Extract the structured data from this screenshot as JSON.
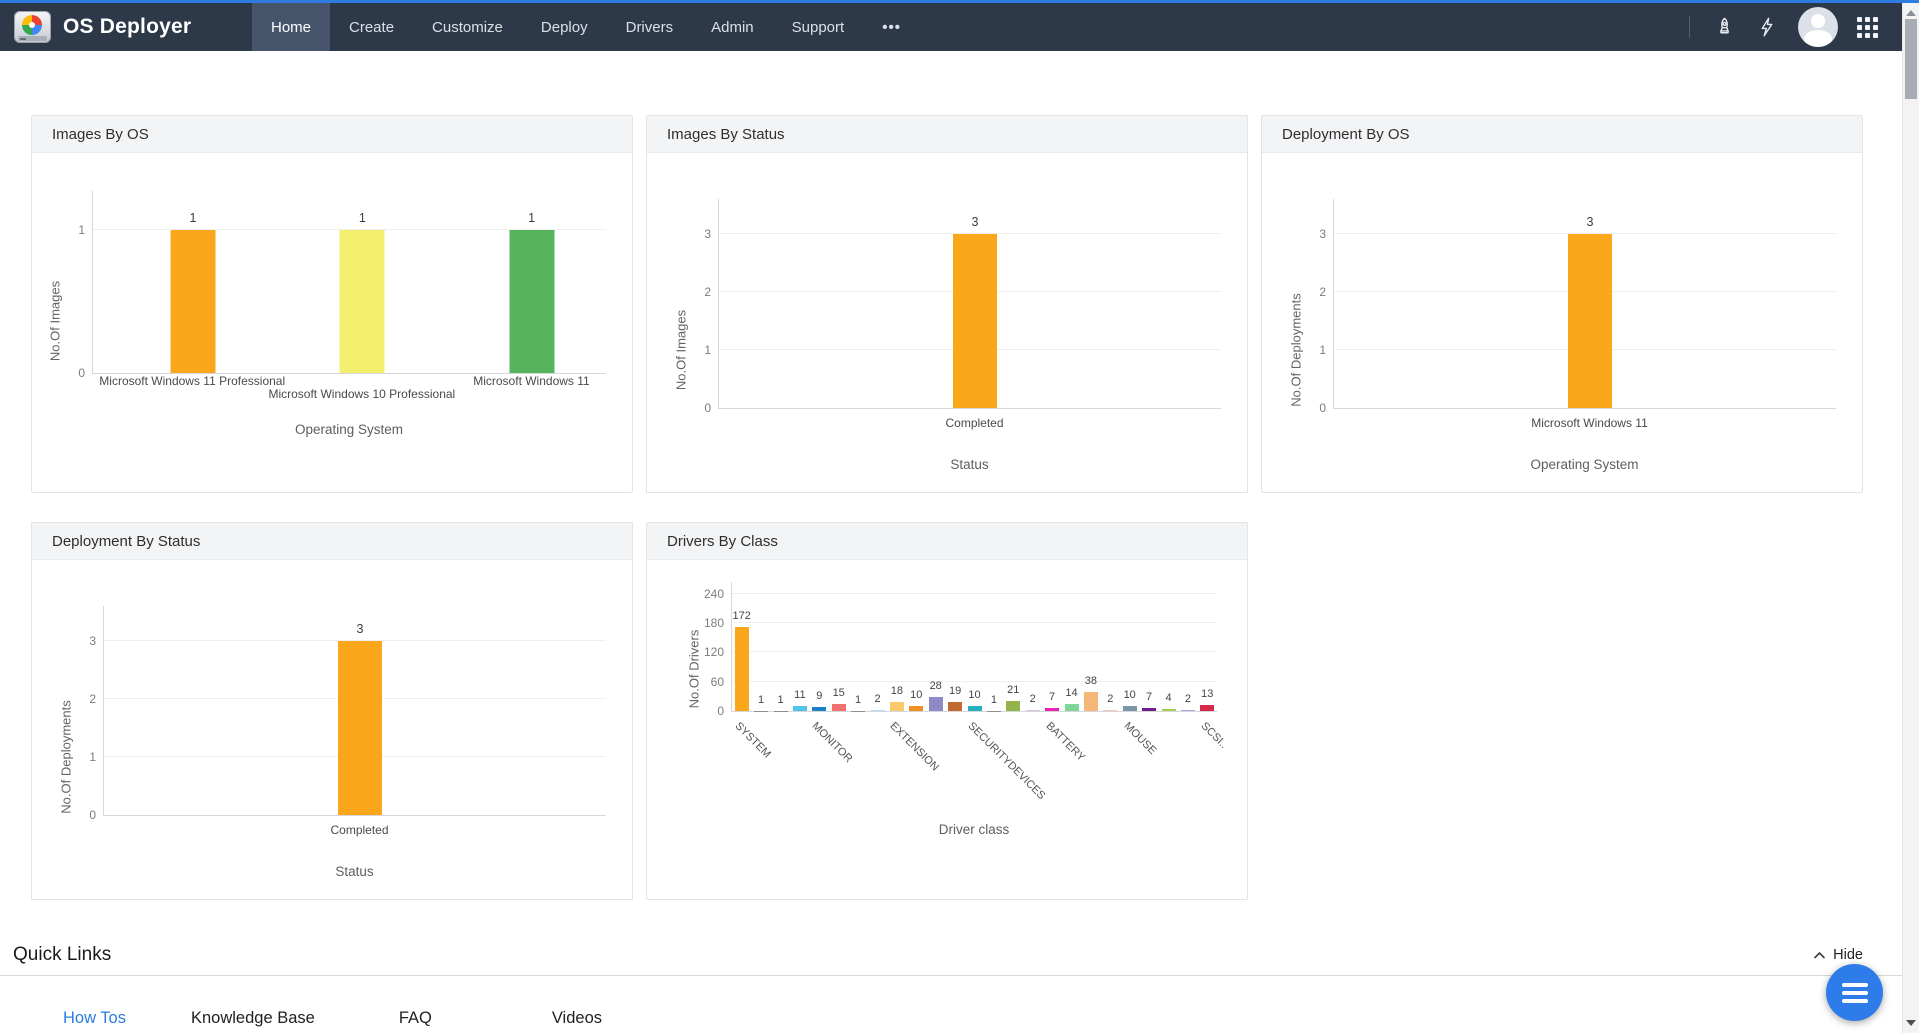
{
  "navbar": {
    "brand": "OS Deployer",
    "items": [
      {
        "label": "Home",
        "active": true
      },
      {
        "label": "Create",
        "active": false
      },
      {
        "label": "Customize",
        "active": false
      },
      {
        "label": "Deploy",
        "active": false
      },
      {
        "label": "Drivers",
        "active": false
      },
      {
        "label": "Admin",
        "active": false
      },
      {
        "label": "Support",
        "active": false
      },
      {
        "label": "•••",
        "active": false,
        "name": "more"
      }
    ],
    "right_icons": [
      "rocket-icon",
      "flash-icon",
      "user-avatar",
      "apps-grid-icon"
    ]
  },
  "chart_data": [
    {
      "type": "bar",
      "title": "Images By OS",
      "ylabel": "No.Of Images",
      "xlabel": "Operating System",
      "yticks": [
        0,
        1
      ],
      "ylim": [
        0,
        1.27
      ],
      "grid": true,
      "legend": "none",
      "categories": [
        "Microsoft Windows 11 Professional",
        "Microsoft Windows 10 Professional",
        "Microsoft Windows 11"
      ],
      "values": [
        1,
        1,
        1
      ],
      "colors": [
        "#fba71b",
        "#f4ef6e",
        "#56b45c"
      ]
    },
    {
      "type": "bar",
      "title": "Images By Status",
      "ylabel": "No.Of Images",
      "xlabel": "Status",
      "yticks": [
        0,
        1,
        2,
        3
      ],
      "ylim": [
        0,
        3.6
      ],
      "grid": true,
      "legend": "none",
      "categories": [
        "Completed"
      ],
      "values": [
        3
      ],
      "colors": [
        "#fba71b"
      ]
    },
    {
      "type": "bar",
      "title": "Deployment By OS",
      "ylabel": "No.Of Deployments",
      "xlabel": "Operating System",
      "yticks": [
        0,
        1,
        2,
        3
      ],
      "ylim": [
        0,
        3.6
      ],
      "grid": true,
      "legend": "none",
      "categories": [
        "Microsoft Windows 11"
      ],
      "values": [
        3
      ],
      "colors": [
        "#fba71b"
      ]
    },
    {
      "type": "bar",
      "title": "Deployment By Status",
      "ylabel": "No.Of Deployments",
      "xlabel": "Status",
      "yticks": [
        0,
        1,
        2,
        3
      ],
      "ylim": [
        0,
        3.6
      ],
      "grid": true,
      "legend": "none",
      "categories": [
        "Completed"
      ],
      "values": [
        3
      ],
      "colors": [
        "#fba71b"
      ]
    },
    {
      "type": "bar",
      "title": "Drivers By Class",
      "ylabel": "No.Of Drivers",
      "xlabel": "Driver class",
      "yticks": [
        0,
        60,
        120,
        180,
        240
      ],
      "ylim": [
        0,
        264
      ],
      "grid": true,
      "legend": "none",
      "values": [
        172,
        1,
        1,
        11,
        9,
        15,
        1,
        2,
        18,
        10,
        28,
        19,
        10,
        1,
        21,
        2,
        7,
        14,
        38,
        2,
        10,
        7,
        4,
        2,
        13
      ],
      "colors": [
        "#fba71b",
        "#8d8d8d",
        "#8d8d8d",
        "#54c3ea",
        "#1b83c5",
        "#f0716e",
        "#8d8d8d",
        "#b6d9f2",
        "#fbca6a",
        "#f09125",
        "#8f8bc7",
        "#c2692f",
        "#22b1bd",
        "#8d8d8d",
        "#94b44b",
        "#dac4dd",
        "#ee22b2",
        "#7ed69b",
        "#f5b678",
        "#f6c3ad",
        "#7e95a8",
        "#6e1f8e",
        "#a5ce4b",
        "#aba4de",
        "#d62849"
      ],
      "visible_category_labels": [
        {
          "index": 0,
          "label": "SYSTEM"
        },
        {
          "index": 4,
          "label": "MONITOR"
        },
        {
          "index": 8,
          "label": "EXTENSION"
        },
        {
          "index": 12,
          "label": "SECURITYDEVICES"
        },
        {
          "index": 16,
          "label": "BATTERY"
        },
        {
          "index": 20,
          "label": "MOUSE"
        },
        {
          "index": 24,
          "label": "SCSI.."
        }
      ]
    }
  ],
  "quick_links": {
    "title": "Quick Links",
    "hide_label": "Hide",
    "tabs": [
      {
        "label": "How Tos",
        "active": true
      },
      {
        "label": "Knowledge Base",
        "active": false
      },
      {
        "label": "FAQ",
        "active": false
      },
      {
        "label": "Videos",
        "active": false
      }
    ]
  },
  "colors": {
    "accent_line": "#2e7ce0",
    "navbar_bg": "#2d3848",
    "nav_active_bg": "#46556c",
    "bar_orange": "#fba71b",
    "bar_yellow": "#f4ef6e",
    "bar_green": "#56b45c",
    "fab_blue": "#2e7ce9",
    "active_tab_blue": "#2b7ce0"
  }
}
